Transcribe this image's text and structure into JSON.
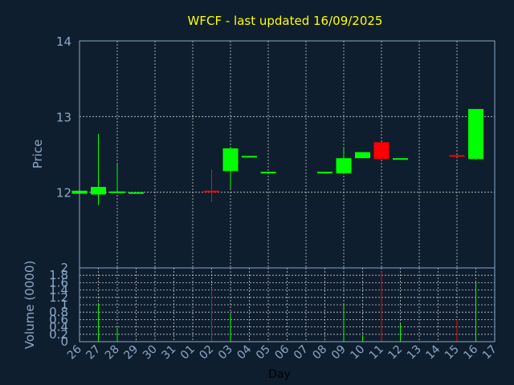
{
  "chart_data": [
    {
      "type": "candlestick",
      "title": "WFCF - last updated 16/09/2025",
      "ylabel": "Price",
      "ylim": [
        11,
        14
      ],
      "yticks": [
        12,
        13,
        14
      ],
      "categories": [
        "26",
        "27",
        "28",
        "29",
        "30",
        "31",
        "01",
        "02",
        "03",
        "04",
        "05",
        "06",
        "07",
        "08",
        "09",
        "10",
        "11",
        "12",
        "13",
        "14",
        "15",
        "16",
        "17"
      ],
      "candles": [
        {
          "day": "26",
          "open": 11.98,
          "close": 12.02,
          "high": 12.02,
          "low": 11.98
        },
        {
          "day": "27",
          "open": 11.97,
          "close": 12.07,
          "high": 12.77,
          "low": 11.83
        },
        {
          "day": "28",
          "open": 12.0,
          "close": 12.01,
          "high": 12.37,
          "low": 12.0
        },
        {
          "day": "29",
          "open": 12.0,
          "close": 12.0,
          "high": 12.0,
          "low": 12.0
        },
        {
          "day": "02",
          "open": 12.02,
          "close": 12.0,
          "high": 12.3,
          "low": 11.87
        },
        {
          "day": "03",
          "open": 12.28,
          "close": 12.58,
          "high": 12.58,
          "low": 12.05
        },
        {
          "day": "04",
          "open": 12.46,
          "close": 12.48,
          "high": 12.48,
          "low": 12.46
        },
        {
          "day": "05",
          "open": 12.26,
          "close": 12.27,
          "high": 12.27,
          "low": 12.26
        },
        {
          "day": "08",
          "open": 12.26,
          "close": 12.27,
          "high": 12.27,
          "low": 12.26
        },
        {
          "day": "09",
          "open": 12.25,
          "close": 12.45,
          "high": 12.6,
          "low": 12.25
        },
        {
          "day": "10",
          "open": 12.45,
          "close": 12.53,
          "high": 12.53,
          "low": 12.45
        },
        {
          "day": "11",
          "open": 12.66,
          "close": 12.44,
          "high": 12.66,
          "low": 12.44
        },
        {
          "day": "12",
          "open": 12.43,
          "close": 12.45,
          "high": 12.45,
          "low": 12.43
        },
        {
          "day": "15",
          "open": 12.49,
          "close": 12.48,
          "high": 12.49,
          "low": 12.48
        },
        {
          "day": "16",
          "open": 12.44,
          "close": 13.1,
          "high": 13.1,
          "low": 12.43
        }
      ],
      "colors": {
        "up": "#00ff00",
        "down": "#ff0000"
      }
    },
    {
      "type": "bar",
      "ylabel": "Volume (0000)",
      "xlabel": "Day",
      "ylim": [
        0,
        2
      ],
      "yticks": [
        0,
        0.2,
        0.4,
        0.6,
        0.8,
        1,
        1.2,
        1.4,
        1.6,
        1.8,
        2
      ],
      "ytick_labels": [
        "0",
        "0.2",
        "0.4",
        "0.6",
        "0.8",
        "1",
        "1.2",
        "1.4",
        "1.6",
        "1.8",
        "2"
      ],
      "bars": [
        {
          "day": "26",
          "value": 0.02,
          "direction": "up"
        },
        {
          "day": "27",
          "value": 1.05,
          "direction": "up"
        },
        {
          "day": "28",
          "value": 0.38,
          "direction": "up"
        },
        {
          "day": "29",
          "value": 0.02,
          "direction": "up"
        },
        {
          "day": "02",
          "value": 1.45,
          "direction": "down"
        },
        {
          "day": "03",
          "value": 0.75,
          "direction": "up"
        },
        {
          "day": "04",
          "value": 0.02,
          "direction": "up"
        },
        {
          "day": "05",
          "value": 0.02,
          "direction": "up"
        },
        {
          "day": "08",
          "value": 0.02,
          "direction": "up"
        },
        {
          "day": "09",
          "value": 1.0,
          "direction": "up"
        },
        {
          "day": "10",
          "value": 0.17,
          "direction": "up"
        },
        {
          "day": "11",
          "value": 1.9,
          "direction": "down"
        },
        {
          "day": "12",
          "value": 0.48,
          "direction": "up"
        },
        {
          "day": "15",
          "value": 0.6,
          "direction": "down"
        },
        {
          "day": "16",
          "value": 1.62,
          "direction": "up"
        }
      ]
    }
  ]
}
